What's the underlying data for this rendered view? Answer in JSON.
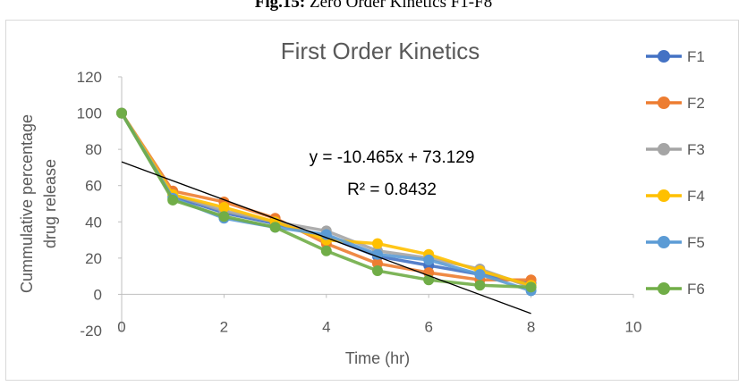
{
  "caption": {
    "bold": "Fig.15:",
    "rest": " Zero Order Kinetics F1-F8"
  },
  "chart_data": {
    "type": "line",
    "title": "First Order Kinetics",
    "xlabel": "Time (hr)",
    "ylabel": "Cummulative percentage drug release",
    "xlim": [
      0,
      10
    ],
    "ylim": [
      -20,
      120
    ],
    "xticks": [
      0,
      2,
      4,
      6,
      8,
      10
    ],
    "yticks": [
      -20,
      0,
      20,
      40,
      60,
      80,
      100,
      120
    ],
    "grid": false,
    "legend_position": "right",
    "x": [
      0,
      1,
      2,
      3,
      4,
      5,
      6,
      7,
      8
    ],
    "series": [
      {
        "name": "F1",
        "color": "#4472C4",
        "values": [
          100,
          54,
          45,
          39,
          32,
          21,
          16,
          11,
          6
        ]
      },
      {
        "name": "F2",
        "color": "#ED7D31",
        "values": [
          100,
          57,
          51,
          42,
          28,
          17,
          12,
          8,
          8
        ]
      },
      {
        "name": "F3",
        "color": "#A5A5A5",
        "values": [
          100,
          55,
          46,
          40,
          35,
          24,
          20,
          14,
          4
        ]
      },
      {
        "name": "F4",
        "color": "#FFC000",
        "values": [
          100,
          55,
          48,
          40,
          30,
          28,
          22,
          13,
          5
        ]
      },
      {
        "name": "F5",
        "color": "#5B9BD5",
        "values": [
          100,
          53,
          42,
          37,
          33,
          22,
          19,
          11,
          2
        ]
      },
      {
        "name": "F6",
        "color": "#70AD47",
        "values": [
          100,
          52,
          43,
          37,
          24,
          13,
          8,
          5,
          4
        ]
      }
    ],
    "trendline": {
      "color": "#000000",
      "slope": -10.465,
      "intercept": 73.129,
      "x_range": [
        0,
        8
      ],
      "equation": "y = -10.465x + 73.129",
      "r2": "R² = 0.8432"
    }
  }
}
